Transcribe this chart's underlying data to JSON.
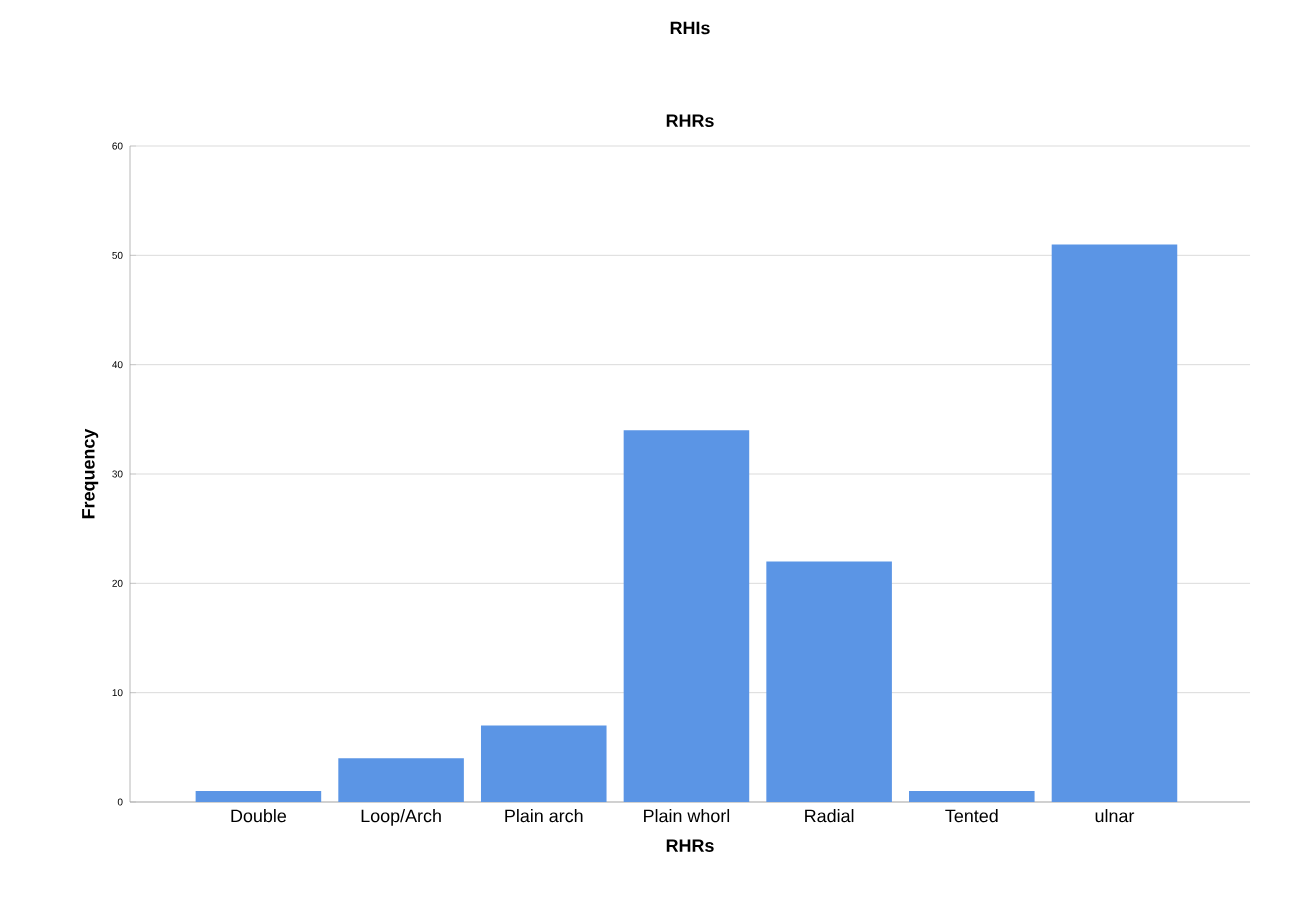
{
  "chart_data": {
    "type": "bar",
    "title": "RHIs",
    "subtitle": "RHRs",
    "xlabel": "RHRs",
    "ylabel": "Frequency",
    "categories": [
      "Double",
      "Loop/Arch",
      "Plain arch",
      "Plain whorl",
      "Radial",
      "Tented",
      "ulnar"
    ],
    "values": [
      1,
      4,
      7,
      34,
      22,
      1,
      51
    ],
    "color": "#5b95e5",
    "ylim": [
      0,
      60
    ],
    "yticks": [
      0,
      10,
      20,
      30,
      40,
      50,
      60
    ],
    "grid": "y"
  }
}
